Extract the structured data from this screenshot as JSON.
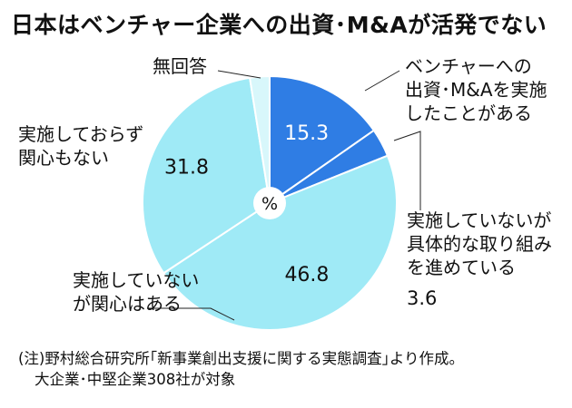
{
  "title": "日本はベンチャー企業への出資･M&Aが活発でない",
  "chart_data": {
    "type": "pie",
    "unit_label": "%",
    "slices": [
      {
        "label": [
          "ベンチャーへの",
          "出資･M&Aを実施",
          "したことがある"
        ],
        "value": 15.3,
        "value_label": "15.3",
        "color": "#2f7de4"
      },
      {
        "label": [
          "実施していないが",
          "具体的な取り組み",
          "を進めている"
        ],
        "value": 3.6,
        "value_label": "3.6",
        "color": "#2f7de4"
      },
      {
        "label": [
          "実施していない",
          "が関心はある"
        ],
        "value": 46.8,
        "value_label": "46.8",
        "color": "#9feaf6"
      },
      {
        "label": [
          "実施しておらず",
          "関心もない"
        ],
        "value": 31.8,
        "value_label": "31.8",
        "color": "#9feaf6"
      },
      {
        "label": [
          "無回答"
        ],
        "value": 2.5,
        "value_label": "",
        "color": "#d8f7fb"
      }
    ]
  },
  "note": {
    "line1": "(注)野村総合研究所｢新事業創出支援に関する実態調査｣より作成。",
    "line2": "大企業･中堅企業308社が対象"
  }
}
